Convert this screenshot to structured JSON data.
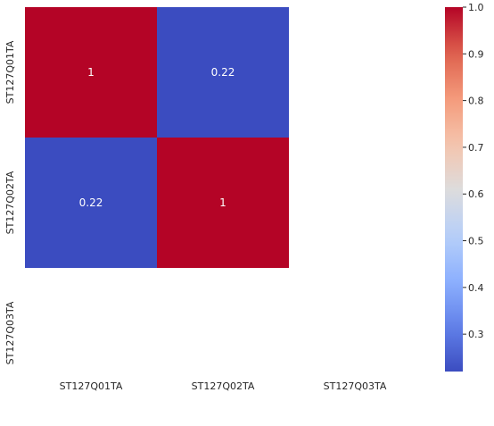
{
  "chart_data": {
    "type": "heatmap",
    "row_labels": [
      "ST127Q01TA",
      "ST127Q02TA",
      "ST127Q03TA"
    ],
    "col_labels": [
      "ST127Q01TA",
      "ST127Q02TA",
      "ST127Q03TA"
    ],
    "values": [
      [
        1,
        0.22,
        null
      ],
      [
        0.22,
        1,
        null
      ],
      [
        null,
        null,
        null
      ]
    ],
    "cell_labels": [
      [
        "1",
        "0.22",
        ""
      ],
      [
        "0.22",
        "1",
        ""
      ],
      [
        "",
        "",
        ""
      ]
    ],
    "colormap": "coolwarm",
    "colorbar": {
      "min": 0.22,
      "max": 1.0,
      "ticks": [
        0.3,
        0.4,
        0.5,
        0.6,
        0.7,
        0.8,
        0.9,
        1.0
      ],
      "tick_labels": [
        "0.3",
        "0.4",
        "0.5",
        "0.6",
        "0.7",
        "0.8",
        "0.9",
        "1.0"
      ]
    },
    "colors": {
      "high": "#b40426",
      "mid": "#dddcdc",
      "low": "#3b4cc0",
      "annotation_text": "#ffffff",
      "tick_text": "#262626"
    },
    "grid": false,
    "title": "",
    "xlabel": "",
    "ylabel": ""
  }
}
